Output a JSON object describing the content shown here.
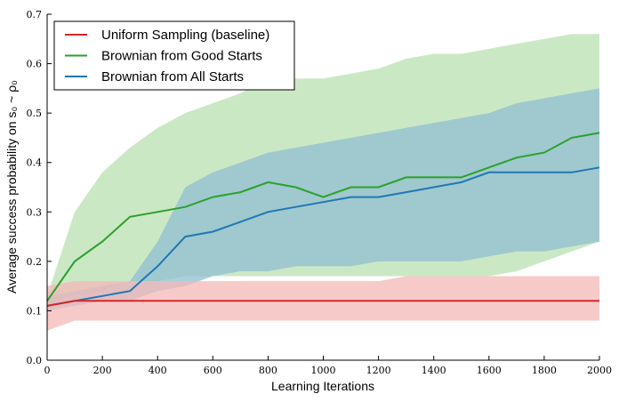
{
  "chart_data": {
    "type": "line",
    "title": "",
    "xlabel": "Learning Iterations",
    "ylabel": "Average success probability on s₀ ~ ρ₀",
    "xlim": [
      0,
      2000
    ],
    "ylim": [
      0.0,
      0.7
    ],
    "x_ticks": [
      "0",
      "200",
      "400",
      "600",
      "800",
      "1000",
      "1200",
      "1400",
      "1600",
      "1800",
      "2000"
    ],
    "y_ticks": [
      "0.0",
      "0.1",
      "0.2",
      "0.3",
      "0.4",
      "0.5",
      "0.6",
      "0.7"
    ],
    "grid": false,
    "legend_position": "top-left",
    "x": [
      0,
      100,
      200,
      300,
      400,
      500,
      600,
      700,
      800,
      900,
      1000,
      1100,
      1200,
      1300,
      1400,
      1500,
      1600,
      1700,
      1800,
      1900,
      2000
    ],
    "series": [
      {
        "name": "Uniform Sampling (baseline)",
        "color": "#d62728",
        "band_color": "#f4b8b8",
        "values": [
          0.11,
          0.12,
          0.12,
          0.12,
          0.12,
          0.12,
          0.12,
          0.12,
          0.12,
          0.12,
          0.12,
          0.12,
          0.12,
          0.12,
          0.12,
          0.12,
          0.12,
          0.12,
          0.12,
          0.12,
          0.12
        ],
        "lower": [
          0.06,
          0.08,
          0.08,
          0.08,
          0.08,
          0.08,
          0.08,
          0.08,
          0.08,
          0.08,
          0.08,
          0.08,
          0.08,
          0.08,
          0.08,
          0.08,
          0.08,
          0.08,
          0.08,
          0.08,
          0.08
        ],
        "upper": [
          0.15,
          0.16,
          0.16,
          0.16,
          0.16,
          0.16,
          0.16,
          0.16,
          0.16,
          0.16,
          0.16,
          0.16,
          0.16,
          0.17,
          0.17,
          0.17,
          0.17,
          0.17,
          0.17,
          0.17,
          0.17
        ]
      },
      {
        "name": "Brownian from Good Starts",
        "color": "#2ca02c",
        "band_color": "#b9e0b1",
        "values": [
          0.12,
          0.2,
          0.24,
          0.29,
          0.3,
          0.31,
          0.33,
          0.34,
          0.36,
          0.35,
          0.33,
          0.35,
          0.35,
          0.37,
          0.37,
          0.37,
          0.39,
          0.41,
          0.42,
          0.45,
          0.46
        ],
        "lower": [
          0.11,
          0.13,
          0.14,
          0.16,
          0.16,
          0.17,
          0.17,
          0.17,
          0.17,
          0.17,
          0.17,
          0.17,
          0.17,
          0.17,
          0.17,
          0.17,
          0.17,
          0.18,
          0.2,
          0.22,
          0.24
        ],
        "upper": [
          0.13,
          0.3,
          0.38,
          0.43,
          0.47,
          0.5,
          0.52,
          0.54,
          0.57,
          0.57,
          0.57,
          0.58,
          0.59,
          0.61,
          0.62,
          0.62,
          0.63,
          0.64,
          0.65,
          0.66,
          0.66
        ]
      },
      {
        "name": "Brownian from All Starts",
        "color": "#1f77b4",
        "band_color": "#90bfd0",
        "values": [
          0.11,
          0.12,
          0.13,
          0.14,
          0.19,
          0.25,
          0.26,
          0.28,
          0.3,
          0.31,
          0.32,
          0.33,
          0.33,
          0.34,
          0.35,
          0.36,
          0.38,
          0.38,
          0.38,
          0.38,
          0.39
        ],
        "lower": [
          0.1,
          0.11,
          0.12,
          0.12,
          0.14,
          0.15,
          0.17,
          0.18,
          0.18,
          0.19,
          0.19,
          0.19,
          0.2,
          0.2,
          0.2,
          0.2,
          0.21,
          0.22,
          0.22,
          0.23,
          0.24
        ],
        "upper": [
          0.13,
          0.14,
          0.15,
          0.16,
          0.24,
          0.35,
          0.38,
          0.4,
          0.42,
          0.43,
          0.44,
          0.45,
          0.46,
          0.47,
          0.48,
          0.49,
          0.5,
          0.52,
          0.53,
          0.54,
          0.55
        ]
      }
    ]
  }
}
